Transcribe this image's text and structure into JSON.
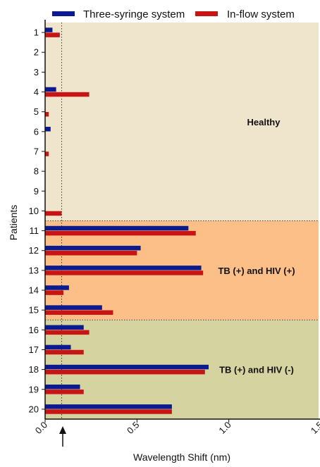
{
  "chart_data": {
    "type": "bar",
    "orientation": "horizontal",
    "categories": [
      "1",
      "2",
      "3",
      "4",
      "5",
      "6",
      "7",
      "8",
      "9",
      "10",
      "11",
      "12",
      "13",
      "14",
      "15",
      "16",
      "17",
      "18",
      "19",
      "20"
    ],
    "series": [
      {
        "name": "Three-syringe system",
        "color": "#0b1a8f",
        "values": [
          0.04,
          0,
          0,
          0.06,
          0,
          0.03,
          0,
          0,
          0,
          0,
          0.78,
          0.52,
          0.85,
          0.13,
          0.31,
          0.21,
          0.14,
          0.89,
          0.19,
          0.69
        ]
      },
      {
        "name": "In-flow system",
        "color": "#c81414",
        "values": [
          0.08,
          0,
          0,
          0.24,
          0.02,
          0,
          0.02,
          0,
          0,
          0.09,
          0.82,
          0.5,
          0.86,
          0.1,
          0.37,
          0.24,
          0.21,
          0.87,
          0.21,
          0.69
        ]
      }
    ],
    "xlabel": "Wavelength Shift (nm)",
    "ylabel": "Patients",
    "xlim": [
      0,
      1.5
    ],
    "xticks": [
      "0.0",
      "0.5",
      "1.0",
      "1.5"
    ],
    "threshold": 0.09,
    "legend_position": "top",
    "regions": [
      {
        "label": "Healthy",
        "from": 1,
        "to": 10,
        "color": "#efe5cc"
      },
      {
        "label": "TB (+) and HIV (+)",
        "from": 11,
        "to": 15,
        "color": "#fbbf87"
      },
      {
        "label": "TB (+) and HIV (-)",
        "from": 16,
        "to": 20,
        "color": "#d5d4a0"
      }
    ]
  }
}
